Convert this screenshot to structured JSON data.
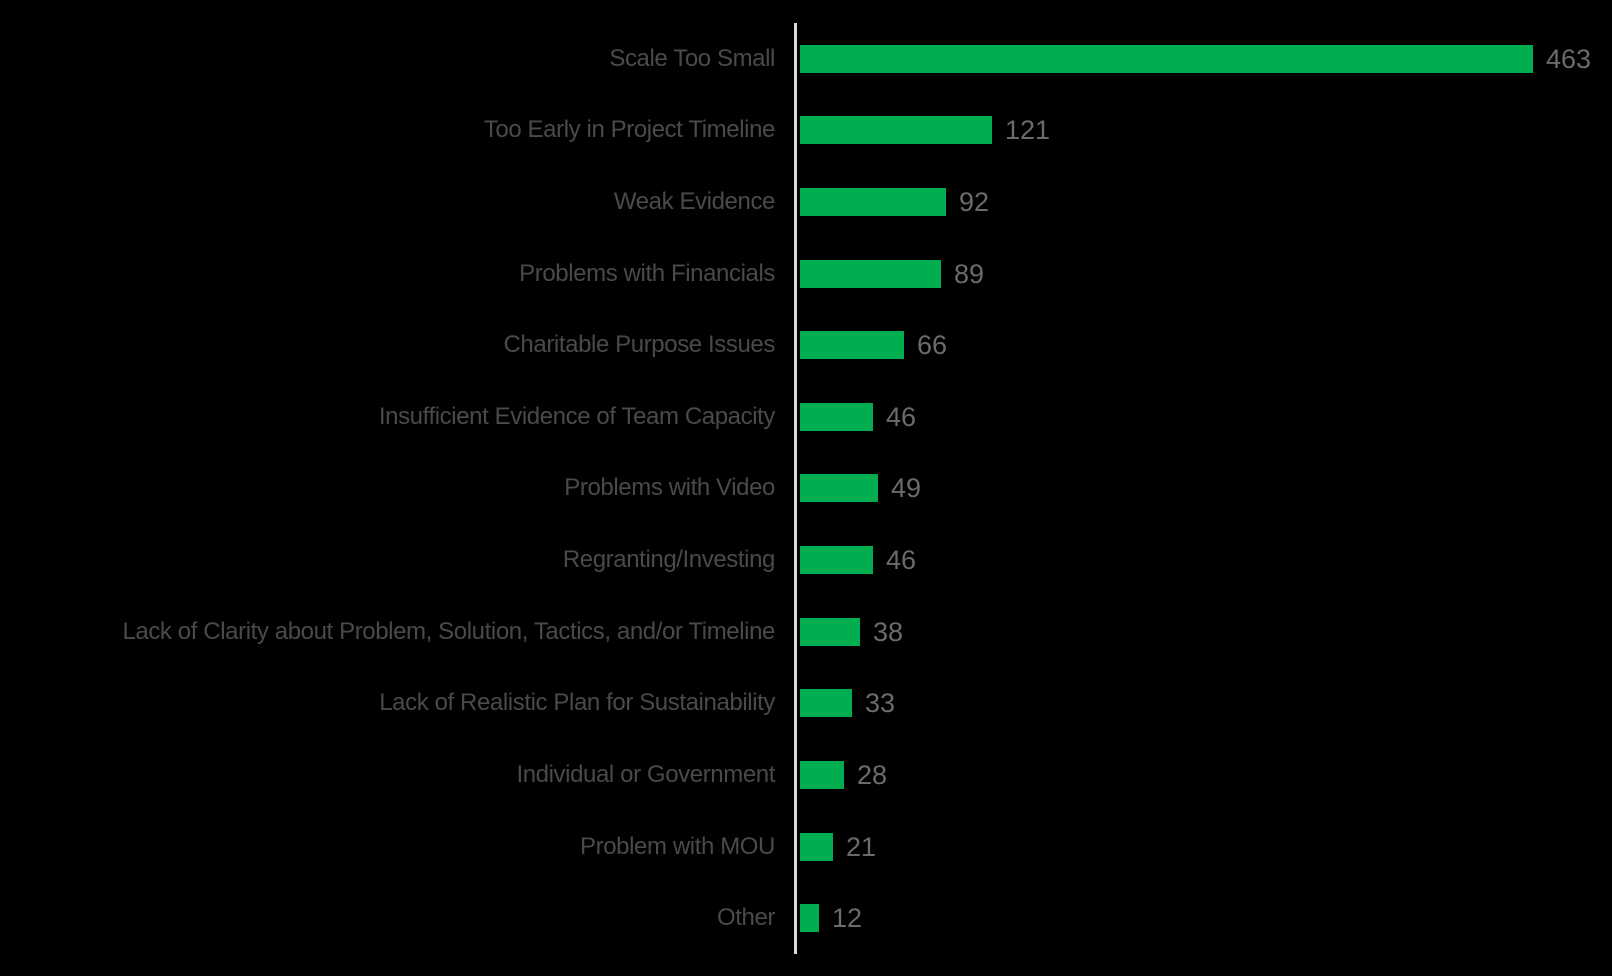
{
  "chart_data": {
    "type": "bar",
    "orientation": "horizontal",
    "title": "",
    "xlabel": "",
    "ylabel": "",
    "grid": false,
    "legend": false,
    "value_labels_visible": true,
    "xlim": [
      0,
      500
    ],
    "categories": [
      "Scale Too Small",
      "Too Early in Project Timeline",
      "Weak Evidence",
      "Problems with Financials",
      "Charitable Purpose Issues",
      "Insufficient Evidence of Team Capacity",
      "Problems with Video",
      "Regranting/Investing",
      "Lack of Clarity about Problem, Solution, Tactics, and/or Timeline",
      "Lack of Realistic Plan for Sustainability",
      "Individual or Government",
      "Problem with MOU",
      "Other"
    ],
    "values": [
      463,
      121,
      92,
      89,
      66,
      46,
      49,
      46,
      38,
      33,
      28,
      21,
      12
    ],
    "colors": {
      "background": "#000000",
      "bar": "#00AE50",
      "axis_line": "#D9D9D9",
      "category_label": "#4A4A4A",
      "value_label": "#6B6B6B"
    }
  }
}
